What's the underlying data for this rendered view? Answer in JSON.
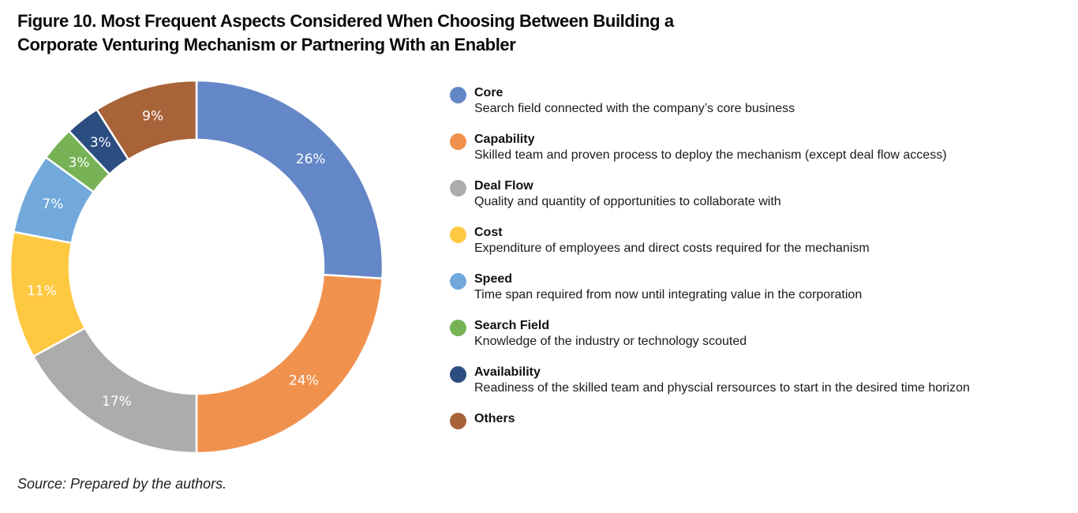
{
  "figure": {
    "title_line1": "Figure 10. Most Frequent Aspects Considered When Choosing Between Building a",
    "title_line2": "Corporate Venturing Mechanism or Partnering With an Enabler",
    "source": "Source: Prepared by the authors."
  },
  "chart_data": {
    "type": "pie",
    "variant": "donut",
    "title": "Figure 10. Most Frequent Aspects Considered When Choosing Between Building a Corporate Venturing Mechanism or Partnering With an Enabler",
    "legend_position": "right",
    "categories": [
      "Core",
      "Capability",
      "Deal Flow",
      "Cost",
      "Speed",
      "Search Field",
      "Availability",
      "Others"
    ],
    "values": [
      26,
      24,
      17,
      11,
      7,
      3,
      3,
      9
    ],
    "labels": [
      "26%",
      "24%",
      "17%",
      "11%",
      "7%",
      "3%",
      "3%",
      "9%"
    ],
    "descriptions": [
      "Search field connected with the company’s core business",
      "Skilled team and proven process to deploy the mechanism (except deal flow access)",
      "Quality and quantity of opportunities to collaborate with",
      "Expenditure of employees and direct costs required for the mechanism",
      "Time span required from now until integrating value in the corporation",
      "Knowledge of the industry or technology scouted",
      "Readiness of the skilled team and physcial rersources to start in the desired time horizon",
      ""
    ],
    "colors": [
      "#6487c7",
      "#f0914e",
      "#acacac",
      "#fec841",
      "#72a9dc",
      "#77b356",
      "#2c4d80",
      "#a86339"
    ],
    "unit": "%"
  }
}
